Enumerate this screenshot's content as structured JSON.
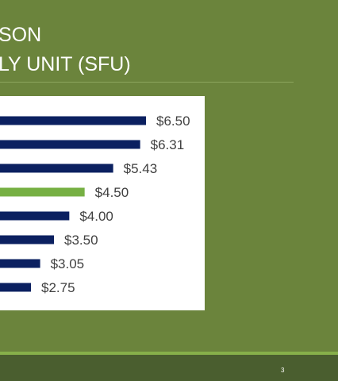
{
  "slide": {
    "title_line1": "SON",
    "title_line2": "LY UNIT (SFU)",
    "page_number": "3"
  },
  "colors": {
    "background": "#6b843c",
    "bar_default": "#0b2060",
    "bar_highlight": "#76b043",
    "label": "#404040"
  },
  "chart_data": {
    "type": "bar",
    "orientation": "horizontal",
    "values": [
      6.5,
      6.31,
      5.43,
      4.5,
      4.0,
      3.5,
      3.05,
      2.75
    ],
    "labels": [
      "$6.50",
      "$6.31",
      "$5.43",
      "$4.50",
      "$4.00",
      "$3.50",
      "$3.05",
      "$2.75"
    ],
    "highlight_index": 3
  }
}
